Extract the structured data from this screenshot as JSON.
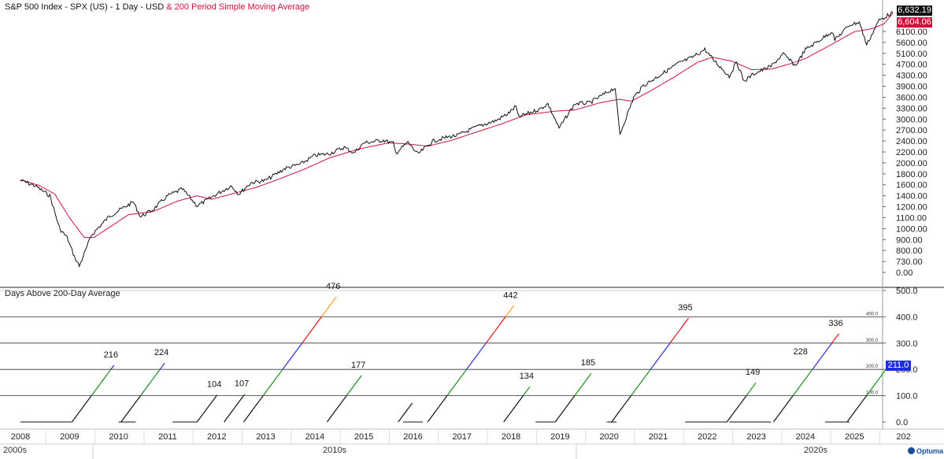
{
  "header": {
    "title_main": "S&P 500 Index - SPX (US) - 1 Day - USD",
    "title_ma": " & 200 Period Simple Moving Average",
    "last_price": "6,632.19",
    "last_ma": "6,604.06"
  },
  "lower_panel": {
    "title": "Days Above 200-Day Average",
    "current_value": "211.0"
  },
  "decades": [
    "2000s",
    "2010s",
    "2020s"
  ],
  "logo_text": "Optuma",
  "colors": {
    "price": "#111111",
    "ma": "#d0103a",
    "green": "#1a8a1a",
    "blue": "#2323d6",
    "red": "#e01010",
    "orange": "#f5a623",
    "grid": "#333333"
  },
  "chart_data": [
    {
      "type": "line",
      "title": "S&P 500 Index - SPX (US) - 1 Day - USD & 200 Period Simple Moving Average",
      "scale": "log",
      "y_ticks": [
        "6100.00",
        "5600.00",
        "5100.00",
        "4700.00",
        "4300.00",
        "3900.00",
        "3600.00",
        "3300.00",
        "3000.00",
        "2700.00",
        "2400.00",
        "2200.00",
        "2000.00",
        "1800.00",
        "1600.00",
        "1400.00",
        "1200.00",
        "1100.00",
        "1000.00",
        "900.00",
        "800.00",
        "730.00",
        "0.00"
      ],
      "x_tick_labels": [
        "2008",
        "2009",
        "2010",
        "2011",
        "2012",
        "2013",
        "2014",
        "2015",
        "2016",
        "2017",
        "2018",
        "2019",
        "2020",
        "2021",
        "2022",
        "2023",
        "2024",
        "2025",
        "202"
      ],
      "series": [
        {
          "name": "S&P 500",
          "points": [
            [
              2008.0,
              1470
            ],
            [
              2008.3,
              1400
            ],
            [
              2008.6,
              1280
            ],
            [
              2008.8,
              950
            ],
            [
              2008.95,
              880
            ],
            [
              2009.1,
              740
            ],
            [
              2009.2,
              680
            ],
            [
              2009.45,
              900
            ],
            [
              2009.8,
              1060
            ],
            [
              2010.0,
              1120
            ],
            [
              2010.3,
              1210
            ],
            [
              2010.45,
              1060
            ],
            [
              2010.7,
              1130
            ],
            [
              2011.0,
              1280
            ],
            [
              2011.3,
              1360
            ],
            [
              2011.6,
              1170
            ],
            [
              2011.8,
              1230
            ],
            [
              2012.0,
              1300
            ],
            [
              2012.3,
              1400
            ],
            [
              2012.45,
              1300
            ],
            [
              2012.7,
              1440
            ],
            [
              2013.0,
              1470
            ],
            [
              2013.4,
              1640
            ],
            [
              2013.7,
              1700
            ],
            [
              2014.0,
              1840
            ],
            [
              2014.3,
              1870
            ],
            [
              2014.6,
              1980
            ],
            [
              2014.8,
              1880
            ],
            [
              2015.0,
              2060
            ],
            [
              2015.4,
              2110
            ],
            [
              2015.6,
              2050
            ],
            [
              2015.65,
              1880
            ],
            [
              2015.9,
              2070
            ],
            [
              2016.1,
              1860
            ],
            [
              2016.4,
              2090
            ],
            [
              2016.7,
              2170
            ],
            [
              2016.9,
              2200
            ],
            [
              2017.3,
              2380
            ],
            [
              2017.7,
              2520
            ],
            [
              2017.95,
              2690
            ],
            [
              2018.1,
              2860
            ],
            [
              2018.15,
              2600
            ],
            [
              2018.6,
              2800
            ],
            [
              2018.75,
              2930
            ],
            [
              2018.98,
              2350
            ],
            [
              2019.3,
              2930
            ],
            [
              2019.6,
              2950
            ],
            [
              2019.95,
              3240
            ],
            [
              2020.12,
              3380
            ],
            [
              2020.22,
              2230
            ],
            [
              2020.5,
              3100
            ],
            [
              2020.7,
              3450
            ],
            [
              2021.0,
              3750
            ],
            [
              2021.4,
              4200
            ],
            [
              2021.7,
              4450
            ],
            [
              2021.95,
              4780
            ],
            [
              2022.1,
              4400
            ],
            [
              2022.45,
              3750
            ],
            [
              2022.6,
              4280
            ],
            [
              2022.75,
              3580
            ],
            [
              2022.95,
              3840
            ],
            [
              2023.3,
              4100
            ],
            [
              2023.55,
              4580
            ],
            [
              2023.8,
              4120
            ],
            [
              2024.0,
              4770
            ],
            [
              2024.3,
              5200
            ],
            [
              2024.55,
              5630
            ],
            [
              2024.6,
              5200
            ],
            [
              2024.9,
              5950
            ],
            [
              2025.1,
              6100
            ],
            [
              2025.25,
              4980
            ],
            [
              2025.5,
              6200
            ],
            [
              2025.75,
              6600
            ],
            [
              2025.78,
              6632.19
            ]
          ]
        },
        {
          "name": "200 Period Simple Moving Average",
          "points": [
            [
              2008.0,
              1480
            ],
            [
              2008.4,
              1400
            ],
            [
              2008.7,
              1300
            ],
            [
              2009.0,
              1050
            ],
            [
              2009.3,
              880
            ],
            [
              2009.5,
              880
            ],
            [
              2009.8,
              960
            ],
            [
              2010.2,
              1080
            ],
            [
              2010.7,
              1110
            ],
            [
              2011.2,
              1220
            ],
            [
              2011.6,
              1280
            ],
            [
              2011.9,
              1240
            ],
            [
              2012.3,
              1300
            ],
            [
              2012.8,
              1380
            ],
            [
              2013.2,
              1470
            ],
            [
              2013.8,
              1630
            ],
            [
              2014.3,
              1800
            ],
            [
              2014.9,
              1950
            ],
            [
              2015.5,
              2060
            ],
            [
              2015.9,
              2040
            ],
            [
              2016.3,
              2000
            ],
            [
              2016.8,
              2110
            ],
            [
              2017.2,
              2240
            ],
            [
              2017.8,
              2440
            ],
            [
              2018.3,
              2650
            ],
            [
              2018.9,
              2740
            ],
            [
              2019.3,
              2770
            ],
            [
              2019.8,
              2950
            ],
            [
              2020.2,
              3050
            ],
            [
              2020.45,
              3000
            ],
            [
              2020.8,
              3250
            ],
            [
              2021.3,
              3700
            ],
            [
              2021.8,
              4250
            ],
            [
              2022.1,
              4450
            ],
            [
              2022.5,
              4300
            ],
            [
              2022.9,
              3980
            ],
            [
              2023.3,
              4000
            ],
            [
              2023.7,
              4200
            ],
            [
              2024.0,
              4400
            ],
            [
              2024.5,
              4950
            ],
            [
              2025.0,
              5600
            ],
            [
              2025.35,
              5750
            ],
            [
              2025.6,
              6000
            ],
            [
              2025.78,
              6604.06
            ]
          ]
        }
      ]
    },
    {
      "type": "line",
      "title": "Days Above 200-Day Average",
      "y_ticks": [
        "500.0",
        "400.0",
        "300.0",
        "200.0",
        "100.0",
        "0.0"
      ],
      "ylim": [
        0,
        500
      ],
      "series": [
        {
          "name": "run-2009",
          "start": 2009.05,
          "days": 216,
          "label": "216"
        },
        {
          "name": "run-2010",
          "start": 2010.05,
          "days": 224,
          "label": "224"
        },
        {
          "name": "run-2011",
          "start": 2011.6,
          "days": 104,
          "label": "104"
        },
        {
          "name": "run-2012",
          "start": 2012.15,
          "days": 107,
          "label": "107"
        },
        {
          "name": "run-2013",
          "start": 2012.55,
          "days": 476,
          "label": "476"
        },
        {
          "name": "run-2014",
          "start": 2014.25,
          "days": 177,
          "label": "177"
        },
        {
          "name": "run-2015",
          "start": 2015.7,
          "days": 72,
          "label": ""
        },
        {
          "name": "run-2016",
          "start": 2016.3,
          "days": 442,
          "label": "442"
        },
        {
          "name": "run-2018",
          "start": 2017.85,
          "days": 134,
          "label": "134"
        },
        {
          "name": "run-2019",
          "start": 2018.9,
          "days": 185,
          "label": "185"
        },
        {
          "name": "run-2020",
          "start": 2020.05,
          "days": 395,
          "label": "395"
        },
        {
          "name": "run-2022",
          "start": 2022.4,
          "days": 149,
          "label": "149"
        },
        {
          "name": "run-2023",
          "start": 2023.35,
          "days": 336,
          "label": "336"
        },
        {
          "name": "run-2025",
          "start": 2024.85,
          "days": 211,
          "label": ""
        }
      ],
      "annotation_labels": [
        "228"
      ]
    }
  ]
}
